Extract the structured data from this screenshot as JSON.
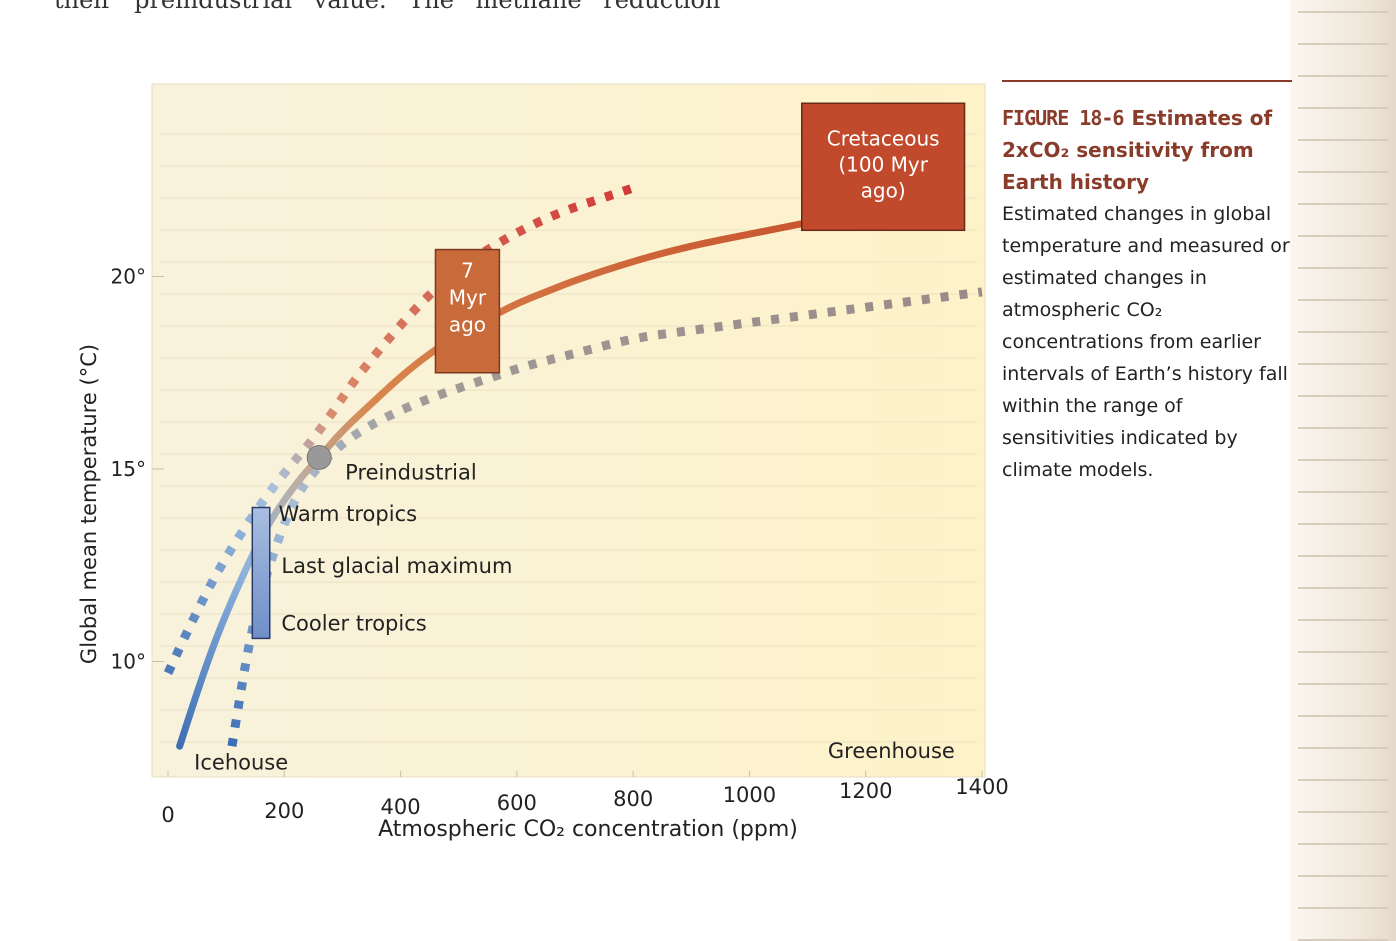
{
  "top_text": "their preindustrial value. The methane reduction",
  "caption": {
    "label": "FIGURE 18-6",
    "title": "Estimates of 2xCO₂ sensitivity from Earth history",
    "body": "Estimated changes in global temperature and measured or estimated changes in atmospheric CO₂ concentrations from earlier intervals of Earth’s history fall within the range of sensitivities indicated by climate models."
  },
  "colors": {
    "cold": "#4a78b9",
    "warm": "#c9552f",
    "cretaceous_box": "#c24a2c",
    "myr_box": "#c96a3a",
    "gray_dashed": "#9a8f88",
    "plot_bg": "#fcf4d8",
    "marker": "#999999",
    "caption_accent": "#8a3c2b"
  },
  "chart_data": {
    "type": "line",
    "xlabel": "Atmospheric CO₂ concentration (ppm)",
    "ylabel": "Global mean temperature (°C)",
    "xlim": [
      0,
      1400
    ],
    "ylim": [
      7,
      25
    ],
    "xticks": [
      0,
      200,
      400,
      600,
      800,
      1000,
      1200,
      1400
    ],
    "yticks": [
      10,
      15,
      20
    ],
    "xtick_labels": [
      "0",
      "200",
      "400",
      "600",
      "800",
      "1000",
      "1200",
      "1400"
    ],
    "ytick_labels": [
      "10°",
      "15°",
      "20°"
    ],
    "series": [
      {
        "x": [
          20,
          50,
          80,
          110,
          140,
          170,
          200,
          230,
          260,
          300,
          350,
          400,
          450,
          500,
          550,
          600,
          650,
          700,
          800,
          900,
          1000,
          1100
        ],
        "y": [
          7.8,
          9.2,
          10.5,
          11.6,
          12.6,
          13.5,
          14.2,
          14.8,
          15.3,
          16.0,
          16.7,
          17.4,
          18.0,
          18.5,
          18.9,
          19.3,
          19.6,
          19.9,
          20.4,
          20.8,
          21.1,
          21.4
        ]
      },
      {
        "x": [
          0,
          40,
          80,
          120,
          160,
          200,
          240,
          280,
          320,
          380,
          440,
          500,
          560,
          620,
          680,
          740,
          800
        ],
        "y": [
          9.7,
          11.0,
          12.2,
          13.2,
          14.1,
          14.9,
          15.6,
          16.4,
          17.3,
          18.4,
          19.4,
          20.2,
          20.8,
          21.3,
          21.7,
          22.0,
          22.3
        ]
      },
      {
        "x": [
          110,
          125,
          140,
          160,
          190,
          220,
          260,
          310,
          380,
          460,
          540,
          620,
          700,
          800,
          900,
          1000,
          1100,
          1200,
          1300,
          1400
        ],
        "y": [
          7.8,
          9.2,
          10.5,
          11.8,
          13.2,
          14.3,
          15.1,
          15.8,
          16.4,
          16.9,
          17.3,
          17.7,
          18.0,
          18.4,
          18.6,
          18.8,
          19.0,
          19.2,
          19.4,
          19.6
        ]
      }
    ],
    "points": [
      {
        "name": "Preindustrial",
        "label": "Preindustrial",
        "x": 260,
        "y": 15.3
      }
    ],
    "ranges": [
      {
        "label": "7 Myr ago",
        "lines": [
          "7",
          "Myr",
          "ago"
        ],
        "x0": 460,
        "x1": 570,
        "y0": 17.5,
        "y1": 20.7
      },
      {
        "label": "Cretaceous (100 Myr ago)",
        "lines": [
          "Cretaceous",
          "(100 Myr",
          "ago)"
        ],
        "x0": 1090,
        "x1": 1370,
        "y0": 21.2,
        "y1": 24.5
      },
      {
        "label": "Warm tropics / Last glacial maximum / Cooler tropics",
        "x0": 145,
        "x1": 175,
        "y0": 10.6,
        "y1": 14.0
      }
    ],
    "annotations": [
      {
        "text": "Warm tropics",
        "x": 190,
        "y": 13.65
      },
      {
        "text": "Last glacial maximum",
        "x": 195,
        "y": 12.3
      },
      {
        "text": "Cooler tropics",
        "x": 195,
        "y": 10.8
      },
      {
        "text": "Icehouse",
        "x": 45,
        "y": 7.2
      },
      {
        "text": "Greenhouse",
        "x": 1135,
        "y": 7.5
      }
    ]
  }
}
